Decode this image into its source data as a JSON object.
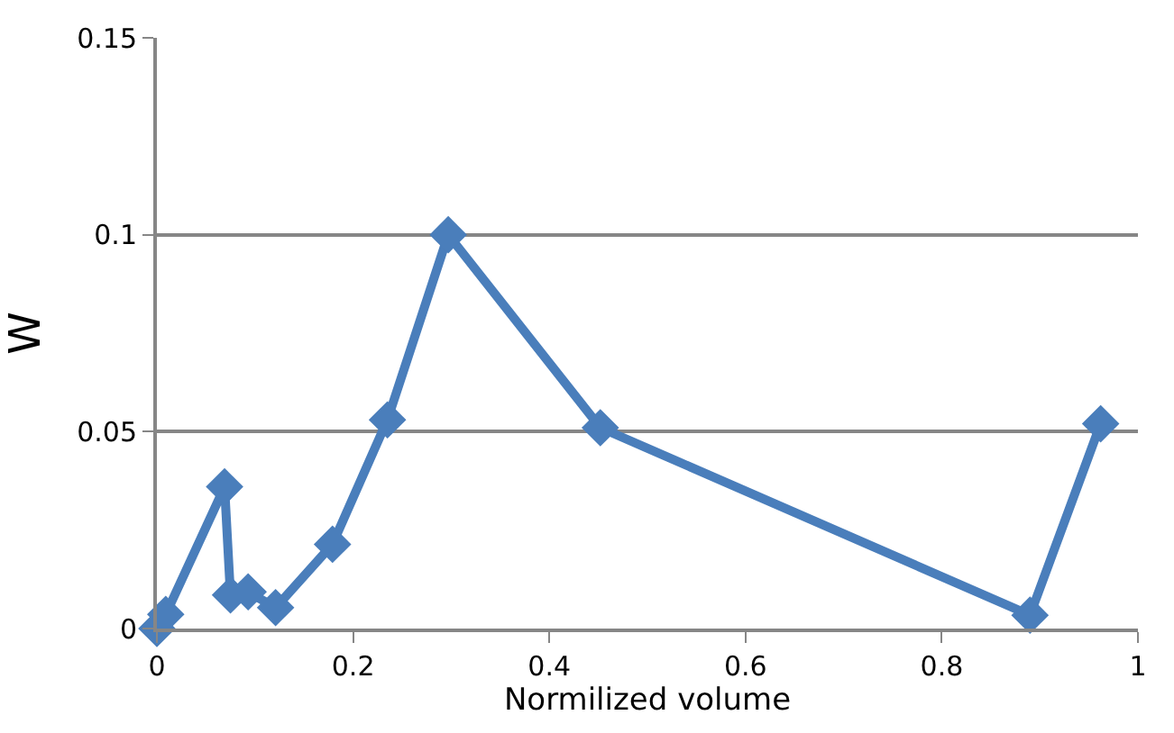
{
  "chart_data": {
    "type": "line",
    "xlabel": "Normilized volume",
    "ylabel": "W",
    "x": [
      0,
      0.009,
      0.069,
      0.075,
      0.093,
      0.121,
      0.179,
      0.235,
      0.297,
      0.452,
      0.89,
      0.962
    ],
    "series": [
      {
        "color": "#4a7ebb",
        "values": [
          0,
          0.0036,
          0.036,
          0.0085,
          0.0093,
          0.0053,
          0.0214,
          0.053,
          0.1,
          0.051,
          0.0034,
          0.052
        ]
      }
    ],
    "xlim": [
      0,
      1
    ],
    "xticks": [
      0,
      0.2,
      0.4,
      0.6,
      0.8,
      1
    ],
    "ylim": [
      0,
      0.15
    ],
    "yticks": [
      0,
      0.05,
      0.1,
      0.15
    ],
    "grid": "y",
    "marker": "diamond",
    "line_style": "solid",
    "legend": false
  }
}
